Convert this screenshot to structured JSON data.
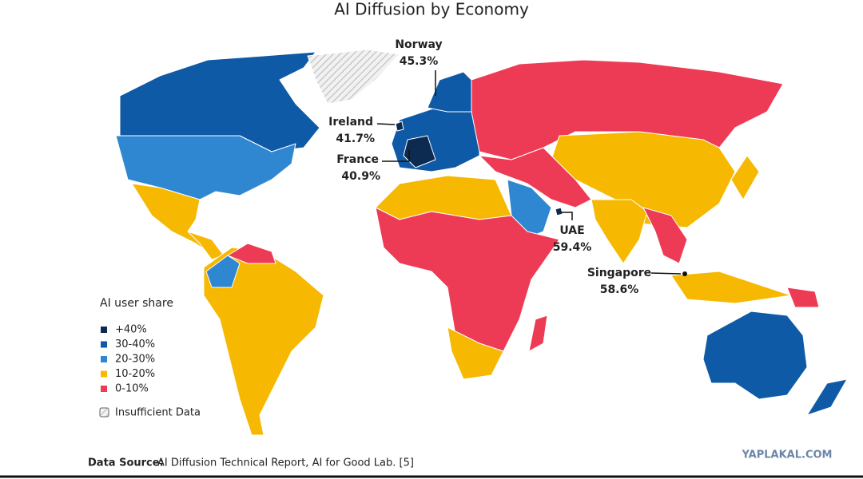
{
  "title": "AI Diffusion by Economy",
  "annotations": [
    {
      "country": "Norway",
      "value": "45.3%"
    },
    {
      "country": "Ireland",
      "value": "41.7%"
    },
    {
      "country": "France",
      "value": "40.9%"
    },
    {
      "country": "UAE",
      "value": "59.4%"
    },
    {
      "country": "Singapore",
      "value": "58.6%"
    }
  ],
  "legend": {
    "title": "AI user share",
    "items": [
      {
        "label": "+40%",
        "color": "#0d2b50"
      },
      {
        "label": "30-40%",
        "color": "#0f5aa6"
      },
      {
        "label": "20-30%",
        "color": "#2f87d2"
      },
      {
        "label": "10-20%",
        "color": "#f6b800"
      },
      {
        "label": "0-10%",
        "color": "#ee3b55"
      }
    ],
    "insufficient": "Insufficient Data"
  },
  "source": {
    "label": "Data Source:",
    "text": "AI Diffusion Technical Report, AI for Good Lab. [5]"
  },
  "watermark": "YAPLAKAL.COM"
}
